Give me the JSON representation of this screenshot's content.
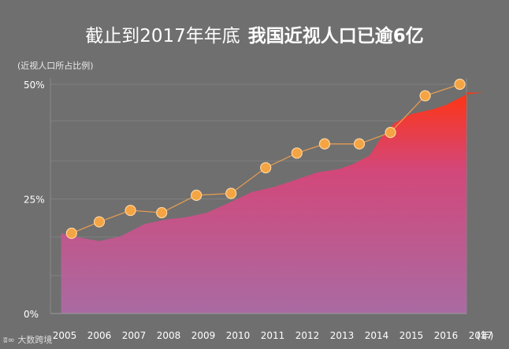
{
  "title": {
    "part1": "截止到2017年年底",
    "part2": "我国近视人口已逾6亿"
  },
  "watermark": "大数跨境",
  "chart_data": {
    "type": "line",
    "title": "截止到2017年年底 我国近视人口已逾6亿",
    "ylabel": "(近视人口所占比例)",
    "xlabel": "(年)",
    "ylim": [
      0,
      50
    ],
    "yticks": [
      "0%",
      "25%",
      "50%"
    ],
    "categories": [
      "2005",
      "2006",
      "2007",
      "2008",
      "2009",
      "2010",
      "2011",
      "2012",
      "2013",
      "2014",
      "2015",
      "2016",
      "2017"
    ],
    "series": [
      {
        "type": "line",
        "marker": "circle",
        "points": [
          {
            "x": 2005.2,
            "y": 17.5
          },
          {
            "x": 2006.0,
            "y": 20.0
          },
          {
            "x": 2006.9,
            "y": 22.5
          },
          {
            "x": 2007.8,
            "y": 22.0
          },
          {
            "x": 2008.8,
            "y": 25.8
          },
          {
            "x": 2009.8,
            "y": 26.2
          },
          {
            "x": 2010.8,
            "y": 31.8
          },
          {
            "x": 2011.7,
            "y": 35.0
          },
          {
            "x": 2012.5,
            "y": 37.0
          },
          {
            "x": 2013.5,
            "y": 37.0
          },
          {
            "x": 2014.4,
            "y": 39.5
          },
          {
            "x": 2015.4,
            "y": 47.5
          },
          {
            "x": 2016.4,
            "y": 50.0
          }
        ]
      },
      {
        "type": "area",
        "points": [
          {
            "x": 2004.9,
            "y": 17.5
          },
          {
            "x": 2005.5,
            "y": 16.5
          },
          {
            "x": 2006.0,
            "y": 15.8
          },
          {
            "x": 2006.6,
            "y": 16.8
          },
          {
            "x": 2007.3,
            "y": 19.5
          },
          {
            "x": 2007.9,
            "y": 20.5
          },
          {
            "x": 2008.5,
            "y": 21.0
          },
          {
            "x": 2009.1,
            "y": 22.0
          },
          {
            "x": 2009.7,
            "y": 24.0
          },
          {
            "x": 2010.4,
            "y": 26.5
          },
          {
            "x": 2011.0,
            "y": 27.5
          },
          {
            "x": 2011.6,
            "y": 29.0
          },
          {
            "x": 2012.3,
            "y": 30.8
          },
          {
            "x": 2012.9,
            "y": 31.5
          },
          {
            "x": 2013.3,
            "y": 32.5
          },
          {
            "x": 2013.8,
            "y": 34.5
          },
          {
            "x": 2014.1,
            "y": 38.0
          },
          {
            "x": 2014.5,
            "y": 41.5
          },
          {
            "x": 2015.0,
            "y": 43.5
          },
          {
            "x": 2015.6,
            "y": 44.5
          },
          {
            "x": 2016.0,
            "y": 45.5
          },
          {
            "x": 2016.6,
            "y": 47.8
          },
          {
            "x": 2017.1,
            "y": 48.2
          }
        ]
      }
    ],
    "grid": true,
    "colors": {
      "background": "#6f6f6f",
      "line": "#f0a050",
      "marker": "#f4a442",
      "marker_edge": "#ffd5a0",
      "area_top": "#ff3412",
      "area_bottom": "#b06aa8",
      "gridline": "#8a8a8a",
      "text": "#ffffff"
    }
  }
}
